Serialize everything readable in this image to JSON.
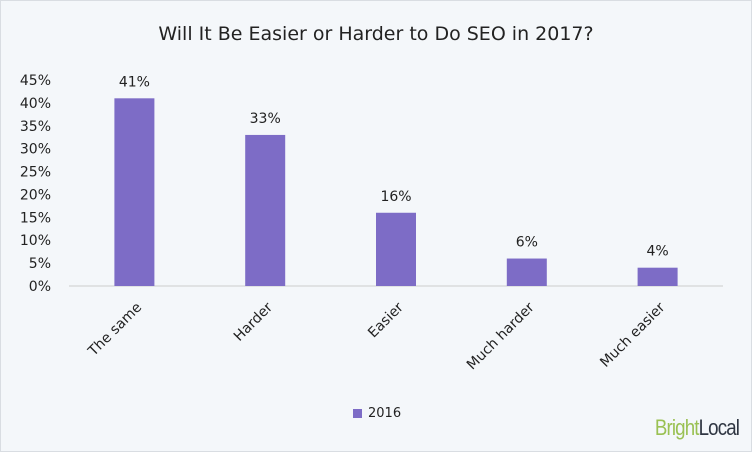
{
  "chart_data": {
    "type": "bar",
    "title": "Will It Be Easier or Harder to Do SEO in 2017?",
    "categories": [
      "The same",
      "Harder",
      "Easier",
      "Much harder",
      "Much easier"
    ],
    "series": [
      {
        "name": "2016",
        "values": [
          41,
          33,
          16,
          6,
          4
        ],
        "color": "#7d6cc6"
      }
    ],
    "data_labels": [
      "41%",
      "33%",
      "16%",
      "6%",
      "4%"
    ],
    "yticks": [
      "0%",
      "5%",
      "10%",
      "15%",
      "20%",
      "25%",
      "30%",
      "35%",
      "40%",
      "45%"
    ],
    "ylim": [
      0,
      45
    ],
    "grid": false,
    "legend": "bottom"
  },
  "logo": {
    "part1": "Bright",
    "part2": "Local"
  }
}
